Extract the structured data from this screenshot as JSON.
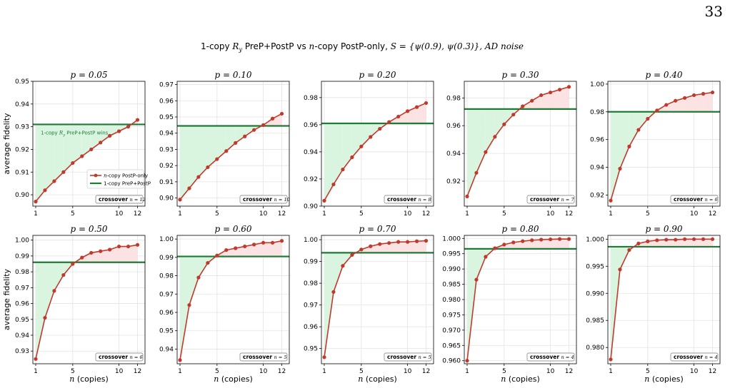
{
  "page_number": "33",
  "suptitle": "1-copy R_y PreP+PostP vs n-copy PostP-only,  S = {ψ(0.9), ψ(0.3)}, AD noise",
  "suptitle_parts": {
    "a": "1-copy ",
    "r": "R",
    "rsub": "y",
    "b": " PreP+PostP vs ",
    "n": "n",
    "c": "-copy PostP-only,  ",
    "s": "S",
    "d": " = {ψ(0.9), ψ(0.3)}, AD noise"
  },
  "ylabel": "average fidelity",
  "xlabel_var": "n",
  "xlabel_rest": " (copies)",
  "colors": {
    "series": "#c0392b",
    "threshold": "#1e7b34",
    "green_fill": "#d9f5e0",
    "red_fill": "#fbe3e3",
    "grid": "#e3e3e3"
  },
  "legend": {
    "series_label": "-copy PostP-only",
    "threshold_label": "1-copy PreP+PostP",
    "placement": "center-right",
    "panel": 0
  },
  "annotation": {
    "text_prefix": "1-copy ",
    "text_var": "R",
    "text_sub": "y",
    "text_suffix": " PreP+PostP wins",
    "panel": 0
  },
  "crossover_label": "crossover",
  "chart_data": [
    {
      "type": "line",
      "title_var": "p",
      "title_value": "0.05",
      "x": [
        1,
        2,
        3,
        4,
        5,
        6,
        7,
        8,
        9,
        10,
        11,
        12
      ],
      "series": [
        {
          "name": "n-copy PostP-only",
          "values": [
            0.897,
            0.902,
            0.906,
            0.91,
            0.914,
            0.917,
            0.92,
            0.923,
            0.926,
            0.928,
            0.93,
            0.933
          ]
        }
      ],
      "threshold": 0.931,
      "ylim": [
        0.895,
        0.95
      ],
      "yticks": [
        "0.90",
        "0.91",
        "0.92",
        "0.93",
        "0.94",
        "0.95"
      ],
      "xticks": [
        1,
        5,
        10,
        12
      ],
      "crossover": "12"
    },
    {
      "type": "line",
      "title_var": "p",
      "title_value": "0.10",
      "x": [
        1,
        2,
        3,
        4,
        5,
        6,
        7,
        8,
        9,
        10,
        11,
        12
      ],
      "series": [
        {
          "name": "n-copy PostP-only",
          "values": [
            0.899,
            0.906,
            0.913,
            0.919,
            0.924,
            0.929,
            0.934,
            0.938,
            0.942,
            0.945,
            0.949,
            0.952
          ]
        }
      ],
      "threshold": 0.9445,
      "ylim": [
        0.895,
        0.972
      ],
      "yticks": [
        "0.90",
        "0.91",
        "0.92",
        "0.93",
        "0.94",
        "0.95",
        "0.96",
        "0.97"
      ],
      "xticks": [
        1,
        5,
        10,
        12
      ],
      "crossover": "10"
    },
    {
      "type": "line",
      "title_var": "p",
      "title_value": "0.20",
      "x": [
        1,
        2,
        3,
        4,
        5,
        6,
        7,
        8,
        9,
        10,
        11,
        12
      ],
      "series": [
        {
          "name": "n-copy PostP-only",
          "values": [
            0.904,
            0.916,
            0.927,
            0.936,
            0.944,
            0.951,
            0.957,
            0.962,
            0.966,
            0.97,
            0.973,
            0.976
          ]
        }
      ],
      "threshold": 0.961,
      "ylim": [
        0.9,
        0.992
      ],
      "yticks": [
        "0.90",
        "0.92",
        "0.94",
        "0.96",
        "0.98"
      ],
      "xticks": [
        1,
        5,
        10,
        12
      ],
      "crossover": "8"
    },
    {
      "type": "line",
      "title_var": "p",
      "title_value": "0.30",
      "x": [
        1,
        2,
        3,
        4,
        5,
        6,
        7,
        8,
        9,
        10,
        11,
        12
      ],
      "series": [
        {
          "name": "n-copy PostP-only",
          "values": [
            0.909,
            0.926,
            0.941,
            0.952,
            0.961,
            0.968,
            0.974,
            0.978,
            0.982,
            0.984,
            0.986,
            0.988
          ]
        }
      ],
      "threshold": 0.972,
      "ylim": [
        0.902,
        0.992
      ],
      "yticks": [
        "0.92",
        "0.94",
        "0.96",
        "0.98"
      ],
      "xticks": [
        1,
        5,
        10,
        12
      ],
      "crossover": "7"
    },
    {
      "type": "line",
      "title_var": "p",
      "title_value": "0.40",
      "x": [
        1,
        2,
        3,
        4,
        5,
        6,
        7,
        8,
        9,
        10,
        11,
        12
      ],
      "series": [
        {
          "name": "n-copy PostP-only",
          "values": [
            0.916,
            0.939,
            0.955,
            0.967,
            0.975,
            0.981,
            0.985,
            0.988,
            0.99,
            0.992,
            0.993,
            0.994
          ]
        }
      ],
      "threshold": 0.98,
      "ylim": [
        0.912,
        1.002
      ],
      "yticks": [
        "0.92",
        "0.94",
        "0.96",
        "0.98",
        "1.00"
      ],
      "xticks": [
        1,
        5,
        10,
        12
      ],
      "crossover": "6"
    },
    {
      "type": "line",
      "title_var": "p",
      "title_value": "0.50",
      "x": [
        1,
        2,
        3,
        4,
        5,
        6,
        7,
        8,
        9,
        10,
        11,
        12
      ],
      "series": [
        {
          "name": "n-copy PostP-only",
          "values": [
            0.925,
            0.951,
            0.968,
            0.978,
            0.985,
            0.989,
            0.992,
            0.993,
            0.994,
            0.996,
            0.996,
            0.997
          ]
        }
      ],
      "threshold": 0.986,
      "ylim": [
        0.922,
        1.003
      ],
      "yticks": [
        "0.93",
        "0.94",
        "0.95",
        "0.96",
        "0.97",
        "0.98",
        "0.99",
        "1.00"
      ],
      "xticks": [
        1,
        5,
        10,
        12
      ],
      "crossover": "6"
    },
    {
      "type": "line",
      "title_var": "p",
      "title_value": "0.60",
      "x": [
        1,
        2,
        3,
        4,
        5,
        6,
        7,
        8,
        9,
        10,
        11,
        12
      ],
      "series": [
        {
          "name": "n-copy PostP-only",
          "values": [
            0.934,
            0.964,
            0.979,
            0.987,
            0.991,
            0.994,
            0.995,
            0.996,
            0.997,
            0.998,
            0.998,
            0.999
          ]
        }
      ],
      "threshold": 0.9905,
      "ylim": [
        0.932,
        1.002
      ],
      "yticks": [
        "0.94",
        "0.95",
        "0.96",
        "0.97",
        "0.98",
        "0.99",
        "1.00"
      ],
      "xticks": [
        1,
        5,
        10,
        12
      ],
      "crossover": "5"
    },
    {
      "type": "line",
      "title_var": "p",
      "title_value": "0.70",
      "x": [
        1,
        2,
        3,
        4,
        5,
        6,
        7,
        8,
        9,
        10,
        11,
        12
      ],
      "series": [
        {
          "name": "n-copy PostP-only",
          "values": [
            0.946,
            0.976,
            0.988,
            0.993,
            0.9955,
            0.997,
            0.998,
            0.9985,
            0.999,
            0.999,
            0.9993,
            0.9995
          ]
        }
      ],
      "threshold": 0.994,
      "ylim": [
        0.943,
        1.002
      ],
      "yticks": [
        "0.95",
        "0.96",
        "0.97",
        "0.98",
        "0.99",
        "1.00"
      ],
      "xticks": [
        1,
        5,
        10,
        12
      ],
      "crossover": "5"
    },
    {
      "type": "line",
      "title_var": "p",
      "title_value": "0.80",
      "x": [
        1,
        2,
        3,
        4,
        5,
        6,
        7,
        8,
        9,
        10,
        11,
        12
      ],
      "series": [
        {
          "name": "n-copy PostP-only",
          "values": [
            0.96,
            0.9865,
            0.994,
            0.9968,
            0.998,
            0.9987,
            0.9991,
            0.9994,
            0.9996,
            0.9997,
            0.9998,
            0.9998
          ]
        }
      ],
      "threshold": 0.9966,
      "ylim": [
        0.959,
        1.001
      ],
      "yticks": [
        "0.960",
        "0.965",
        "0.970",
        "0.975",
        "0.980",
        "0.985",
        "0.990",
        "0.995",
        "1.000"
      ],
      "xticks": [
        1,
        5,
        10,
        12
      ],
      "crossover": "4"
    },
    {
      "type": "line",
      "title_var": "p",
      "title_value": "0.90",
      "x": [
        1,
        2,
        3,
        4,
        5,
        6,
        7,
        8,
        9,
        10,
        11,
        12
      ],
      "series": [
        {
          "name": "n-copy PostP-only",
          "values": [
            0.9778,
            0.9944,
            0.998,
            0.9992,
            0.9996,
            0.9998,
            0.9999,
            0.9999,
            1.0,
            1.0,
            1.0,
            1.0
          ]
        }
      ],
      "threshold": 0.9986,
      "ylim": [
        0.977,
        1.0007
      ],
      "yticks": [
        "0.980",
        "0.985",
        "0.990",
        "0.995",
        "1.000"
      ],
      "xticks": [
        1,
        5,
        10,
        12
      ],
      "crossover": "4"
    }
  ]
}
